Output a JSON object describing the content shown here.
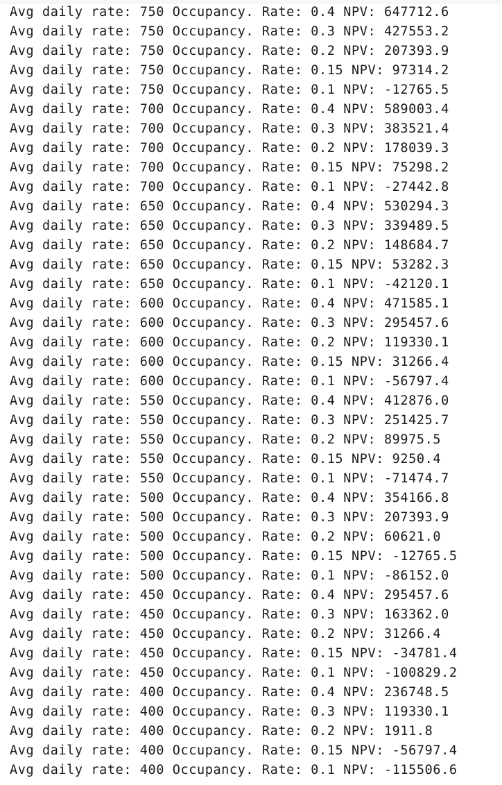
{
  "output": {
    "lines": [
      "Avg daily rate: 750 Occupancy. Rate: 0.4 NPV: 647712.6",
      "Avg daily rate: 750 Occupancy. Rate: 0.3 NPV: 427553.2",
      "Avg daily rate: 750 Occupancy. Rate: 0.2 NPV: 207393.9",
      "Avg daily rate: 750 Occupancy. Rate: 0.15 NPV: 97314.2",
      "Avg daily rate: 750 Occupancy. Rate: 0.1 NPV: -12765.5",
      "Avg daily rate: 700 Occupancy. Rate: 0.4 NPV: 589003.4",
      "Avg daily rate: 700 Occupancy. Rate: 0.3 NPV: 383521.4",
      "Avg daily rate: 700 Occupancy. Rate: 0.2 NPV: 178039.3",
      "Avg daily rate: 700 Occupancy. Rate: 0.15 NPV: 75298.2",
      "Avg daily rate: 700 Occupancy. Rate: 0.1 NPV: -27442.8",
      "Avg daily rate: 650 Occupancy. Rate: 0.4 NPV: 530294.3",
      "Avg daily rate: 650 Occupancy. Rate: 0.3 NPV: 339489.5",
      "Avg daily rate: 650 Occupancy. Rate: 0.2 NPV: 148684.7",
      "Avg daily rate: 650 Occupancy. Rate: 0.15 NPV: 53282.3",
      "Avg daily rate: 650 Occupancy. Rate: 0.1 NPV: -42120.1",
      "Avg daily rate: 600 Occupancy. Rate: 0.4 NPV: 471585.1",
      "Avg daily rate: 600 Occupancy. Rate: 0.3 NPV: 295457.6",
      "Avg daily rate: 600 Occupancy. Rate: 0.2 NPV: 119330.1",
      "Avg daily rate: 600 Occupancy. Rate: 0.15 NPV: 31266.4",
      "Avg daily rate: 600 Occupancy. Rate: 0.1 NPV: -56797.4",
      "Avg daily rate: 550 Occupancy. Rate: 0.4 NPV: 412876.0",
      "Avg daily rate: 550 Occupancy. Rate: 0.3 NPV: 251425.7",
      "Avg daily rate: 550 Occupancy. Rate: 0.2 NPV: 89975.5",
      "Avg daily rate: 550 Occupancy. Rate: 0.15 NPV: 9250.4",
      "Avg daily rate: 550 Occupancy. Rate: 0.1 NPV: -71474.7",
      "Avg daily rate: 500 Occupancy. Rate: 0.4 NPV: 354166.8",
      "Avg daily rate: 500 Occupancy. Rate: 0.3 NPV: 207393.9",
      "Avg daily rate: 500 Occupancy. Rate: 0.2 NPV: 60621.0",
      "Avg daily rate: 500 Occupancy. Rate: 0.15 NPV: -12765.5",
      "Avg daily rate: 500 Occupancy. Rate: 0.1 NPV: -86152.0",
      "Avg daily rate: 450 Occupancy. Rate: 0.4 NPV: 295457.6",
      "Avg daily rate: 450 Occupancy. Rate: 0.3 NPV: 163362.0",
      "Avg daily rate: 450 Occupancy. Rate: 0.2 NPV: 31266.4",
      "Avg daily rate: 450 Occupancy. Rate: 0.15 NPV: -34781.4",
      "Avg daily rate: 450 Occupancy. Rate: 0.1 NPV: -100829.2",
      "Avg daily rate: 400 Occupancy. Rate: 0.4 NPV: 236748.5",
      "Avg daily rate: 400 Occupancy. Rate: 0.3 NPV: 119330.1",
      "Avg daily rate: 400 Occupancy. Rate: 0.2 NPV: 1911.8",
      "Avg daily rate: 400 Occupancy. Rate: 0.15 NPV: -56797.4",
      "Avg daily rate: 400 Occupancy. Rate: 0.1 NPV: -115506.6"
    ]
  },
  "colors": {
    "background": "#ffffff",
    "text": "#1a1a1a"
  }
}
